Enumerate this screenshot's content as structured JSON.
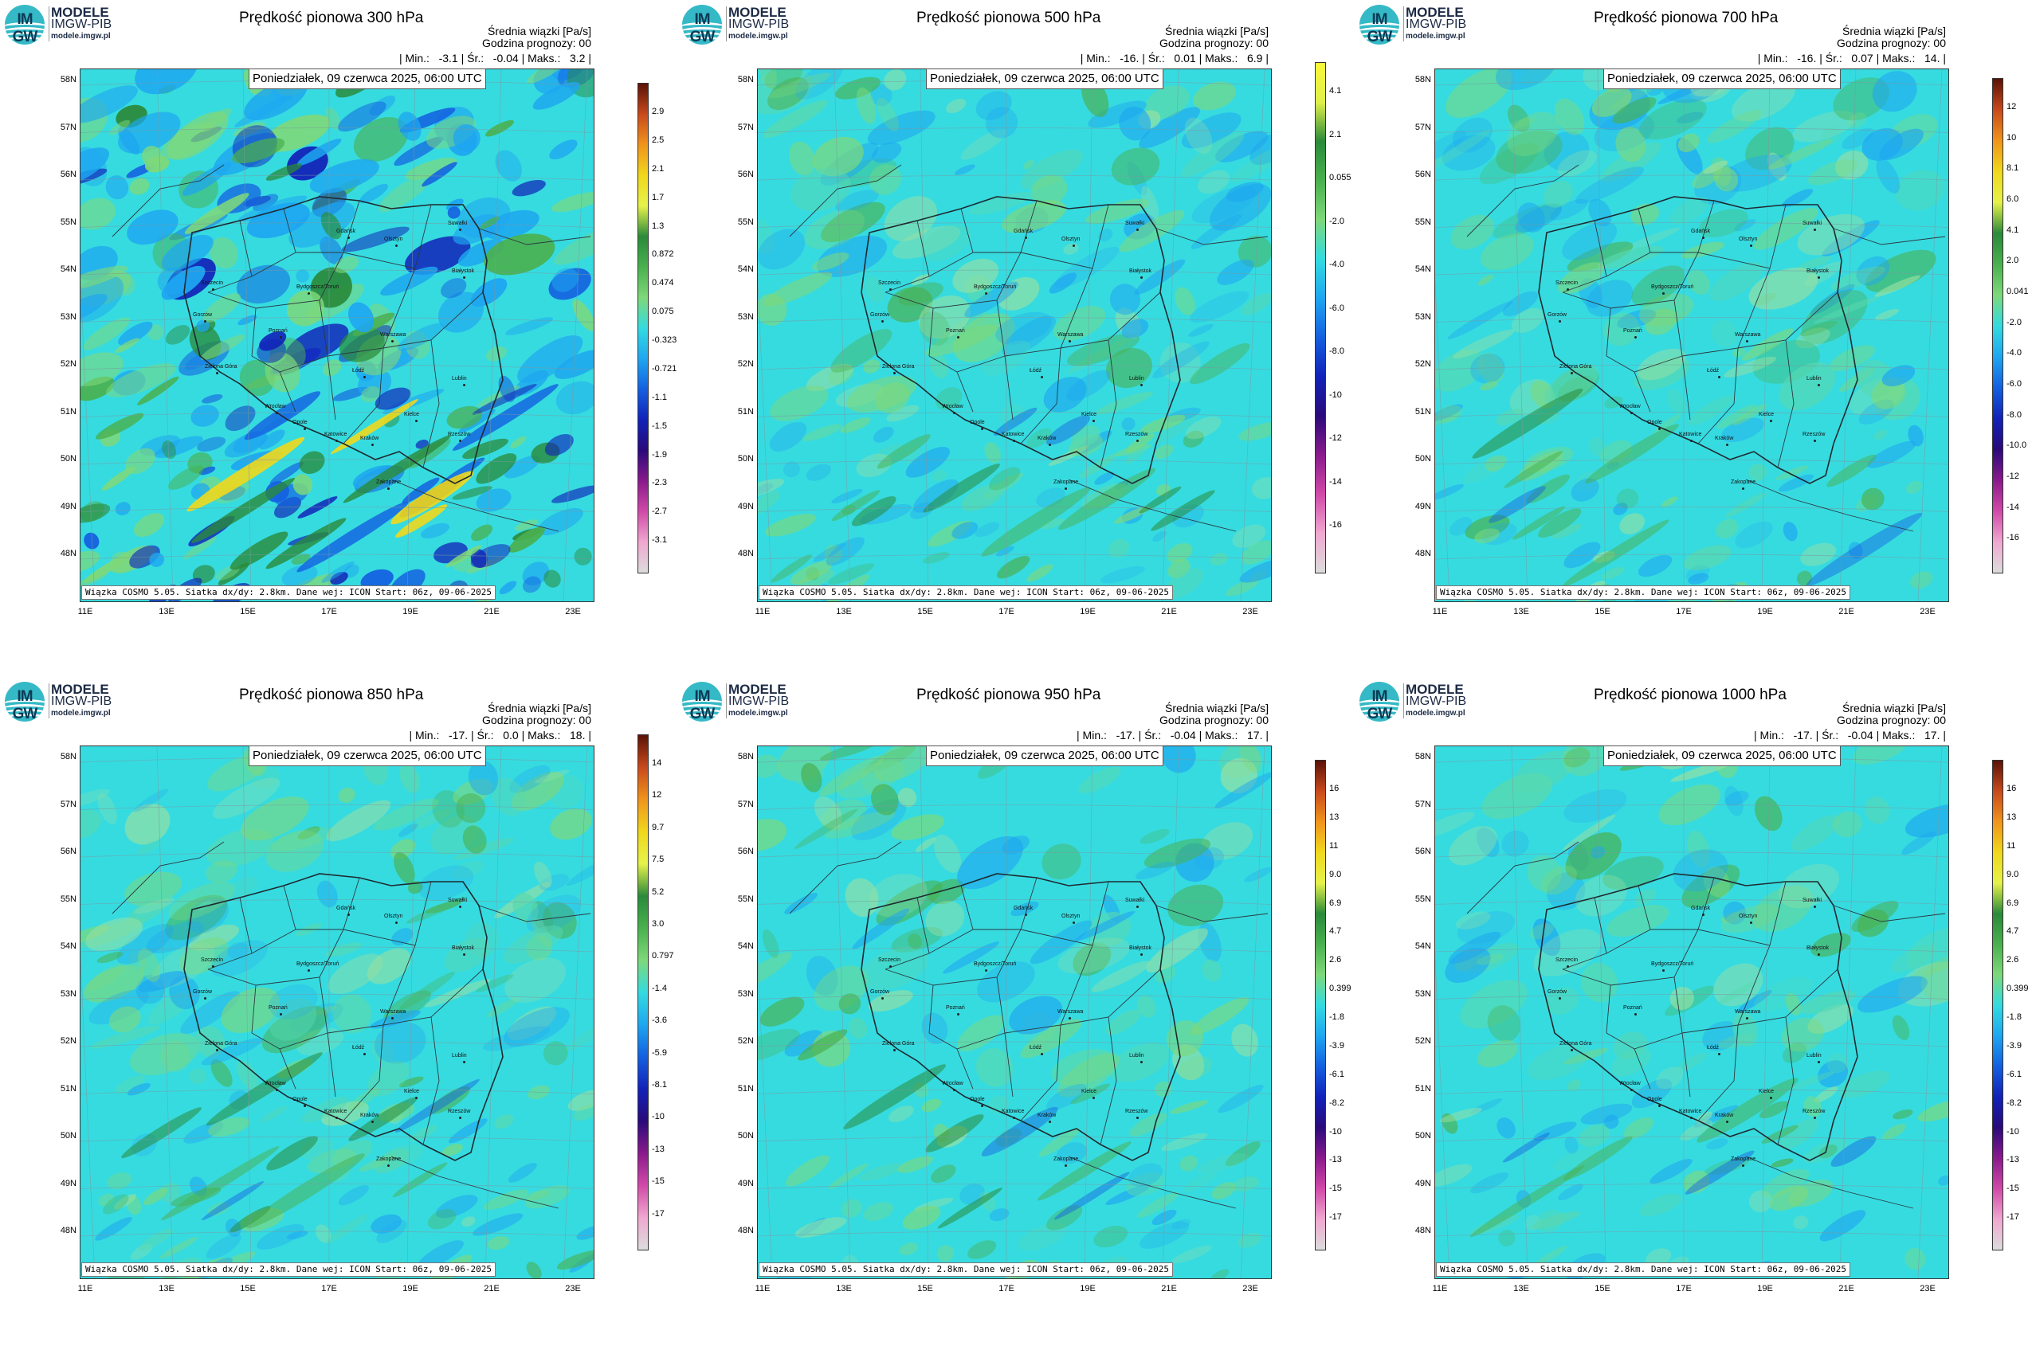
{
  "logo": {
    "badge_text": "IM GW",
    "line1": "MODELE",
    "line2": "IMGW-PIB",
    "line3": "modele.imgw.pl"
  },
  "info_line1": "Średnia wiązki [Pa/s]",
  "info_line2": "Godzina prognozy: 00",
  "date_text": "Poniedziałek, 09 czerwca 2025, 06:00 UTC",
  "footer_text": "Wiązka COSMO 5.05. Siatka dx/dy: 2.8km. Dane wej: ICON Start: 06z, 09-06-2025",
  "lat_labels": [
    "58N",
    "57N",
    "56N",
    "55N",
    "54N",
    "53N",
    "52N",
    "51N",
    "50N",
    "49N",
    "48N"
  ],
  "lon_labels": [
    "11E",
    "13E",
    "15E",
    "17E",
    "19E",
    "21E",
    "23E"
  ],
  "cities": [
    "Gdańsk",
    "Olsztyn",
    "Suwałki",
    "Szczecin",
    "Białystok",
    "Gorzów",
    "Bydgoszcz/Toruń",
    "Poznań",
    "Warszawa",
    "Zielona Góra",
    "Łódź",
    "Lublin",
    "Wrocław",
    "Kielce",
    "Opole",
    "Katowice",
    "Kraków",
    "Rzeszów",
    "Zakopane"
  ],
  "panels": [
    {
      "title": "Prędkość pionowa 300 hPa",
      "min": "-3.1",
      "mean": "-0.04",
      "max": "3.2",
      "colorbar_labels": [
        "2.9",
        "2.5",
        "2.1",
        "1.7",
        "1.3",
        "0.872",
        "0.474",
        "0.075",
        "-0.323",
        "-0.721",
        "-1.1",
        "-1.5",
        "-1.9",
        "-2.3",
        "-2.7",
        "-3.1"
      ],
      "colorbar_colors": [
        "#5a1208",
        "#c84a1c",
        "#f0941c",
        "#f0d81c",
        "#e6f24a",
        "#2a8a3a",
        "#4ab04e",
        "#7ed87a",
        "#33dbe0",
        "#1ea6f0",
        "#1460e0",
        "#1222b8",
        "#2a0a7a",
        "#8a1a8c",
        "#d04aa8",
        "#f0a8d0",
        "#dcdcdc"
      ],
      "activity": "high"
    },
    {
      "title": "Prędkość pionowa 500 hPa",
      "min": "-16.",
      "mean": "0.01",
      "max": "6.9",
      "colorbar_labels": [
        "4.1",
        "2.1",
        "0.055",
        "-2.0",
        "-4.0",
        "-6.0",
        "-8.0",
        "-10",
        "-12",
        "-14",
        "-16"
      ],
      "colorbar_colors": [
        "#f8f838",
        "#e0f04a",
        "#2a8a3a",
        "#4ab04e",
        "#7ed87a",
        "#33dbe0",
        "#1ea6f0",
        "#1460e0",
        "#1222b8",
        "#2a0a7a",
        "#8a1a8c",
        "#d04aa8",
        "#f0a8d0",
        "#dcdcdc"
      ],
      "activity": "medium"
    },
    {
      "title": "Prędkość pionowa 700 hPa",
      "min": "-16.",
      "mean": "0.07",
      "max": "14.",
      "colorbar_labels": [
        "12",
        "10",
        "8.1",
        "6.0",
        "4.1",
        "2.0",
        "0.041",
        "-2.0",
        "-4.0",
        "-6.0",
        "-8.0",
        "-10.0",
        "-12",
        "-14",
        "-16"
      ],
      "colorbar_colors": [
        "#5a1208",
        "#c84a1c",
        "#f0941c",
        "#f0d81c",
        "#e6f24a",
        "#2a8a3a",
        "#4ab04e",
        "#7ed87a",
        "#33dbe0",
        "#1ea6f0",
        "#1460e0",
        "#1222b8",
        "#2a0a7a",
        "#8a1a8c",
        "#d04aa8",
        "#f0a8d0",
        "#dcdcdc"
      ],
      "activity": "medium"
    },
    {
      "title": "Prędkość pionowa 850 hPa",
      "min": "-17.",
      "mean": "0.0",
      "max": "18.",
      "colorbar_labels": [
        "14",
        "12",
        "9.7",
        "7.5",
        "5.2",
        "3.0",
        "0.797",
        "-1.4",
        "-3.6",
        "-5.9",
        "-8.1",
        "-10",
        "-13",
        "-15",
        "-17"
      ],
      "colorbar_colors": [
        "#5a1208",
        "#c84a1c",
        "#f0941c",
        "#f0d81c",
        "#e6f24a",
        "#2a8a3a",
        "#4ab04e",
        "#7ed87a",
        "#33dbe0",
        "#1ea6f0",
        "#1460e0",
        "#1222b8",
        "#2a0a7a",
        "#8a1a8c",
        "#d04aa8",
        "#f0a8d0",
        "#dcdcdc"
      ],
      "activity": "medium"
    },
    {
      "title": "Prędkość pionowa 950 hPa",
      "min": "-17.",
      "mean": "-0.04",
      "max": "17.",
      "colorbar_labels": [
        "16",
        "13",
        "11",
        "9.0",
        "6.9",
        "4.7",
        "2.6",
        "0.399",
        "-1.8",
        "-3.9",
        "-6.1",
        "-8.2",
        "-10",
        "-13",
        "-15",
        "-17"
      ],
      "colorbar_colors": [
        "#5a1208",
        "#c84a1c",
        "#f0941c",
        "#f0d81c",
        "#e6f24a",
        "#2a8a3a",
        "#4ab04e",
        "#7ed87a",
        "#33dbe0",
        "#1ea6f0",
        "#1460e0",
        "#1222b8",
        "#2a0a7a",
        "#8a1a8c",
        "#d04aa8",
        "#f0a8d0",
        "#dcdcdc"
      ],
      "activity": "low"
    },
    {
      "title": "Prędkość pionowa 1000 hPa",
      "min": "-17.",
      "mean": "-0.04",
      "max": "17.",
      "colorbar_labels": [
        "16",
        "13",
        "11",
        "9.0",
        "6.9",
        "4.7",
        "2.6",
        "0.399",
        "-1.8",
        "-3.9",
        "-6.1",
        "-8.2",
        "-10",
        "-13",
        "-15",
        "-17"
      ],
      "colorbar_colors": [
        "#5a1208",
        "#c84a1c",
        "#f0941c",
        "#f0d81c",
        "#e6f24a",
        "#2a8a3a",
        "#4ab04e",
        "#7ed87a",
        "#33dbe0",
        "#1ea6f0",
        "#1460e0",
        "#1222b8",
        "#2a0a7a",
        "#8a1a8c",
        "#d04aa8",
        "#f0a8d0",
        "#dcdcdc"
      ],
      "activity": "low"
    }
  ]
}
